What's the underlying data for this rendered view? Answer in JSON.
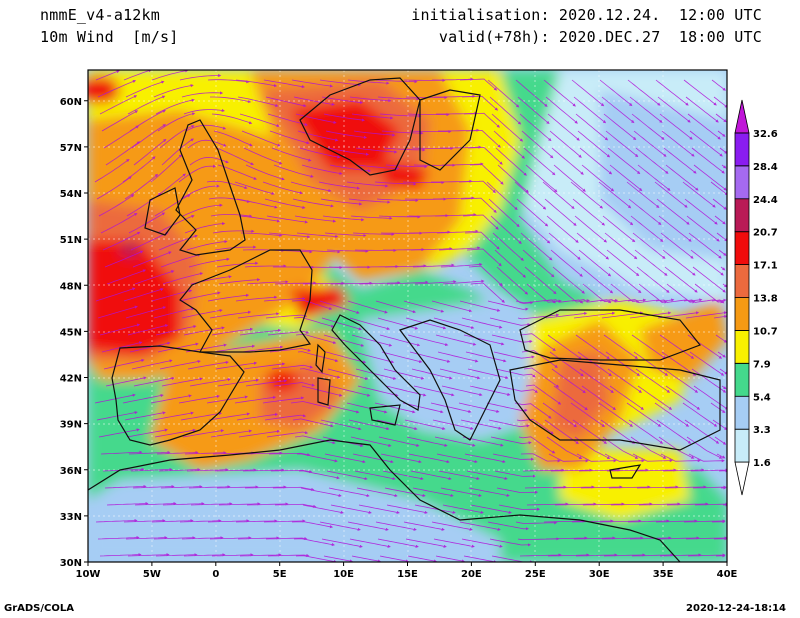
{
  "header": {
    "model": "nmmE_v4-a12km",
    "field": "10m Wind  [m/s]",
    "init": "initialisation: 2020.12.24.  12:00 UTC",
    "valid": "valid(+78h): 2020.DEC.27  18:00 UTC"
  },
  "footer": {
    "software": "GrADS/COLA",
    "timestamp": "2020-12-24-18:14"
  },
  "map": {
    "lon_range": [
      -10,
      40
    ],
    "lat_range": [
      30,
      62
    ],
    "lon_ticks": [
      "10W",
      "5W",
      "0",
      "5E",
      "10E",
      "15E",
      "20E",
      "25E",
      "30E",
      "35E",
      "40E"
    ],
    "lat_ticks": [
      "30N",
      "33N",
      "36N",
      "39N",
      "42N",
      "45N",
      "48N",
      "51N",
      "54N",
      "57N",
      "60N"
    ]
  },
  "colorbar": {
    "labels": [
      "1.6",
      "3.3",
      "5.4",
      "7.9",
      "10.7",
      "13.8",
      "17.1",
      "20.7",
      "24.4",
      "28.4",
      "32.6"
    ],
    "colors": [
      "#ffffff",
      "#c8ecf8",
      "#a6cdf4",
      "#44d98c",
      "#f8f000",
      "#f69a14",
      "#ec6a3e",
      "#f00c0c",
      "#b91a56",
      "#a56af0",
      "#8a1cf0",
      "#c016d8"
    ]
  },
  "colors": {
    "streamline": "#b010d8",
    "coast": "#101010"
  }
}
